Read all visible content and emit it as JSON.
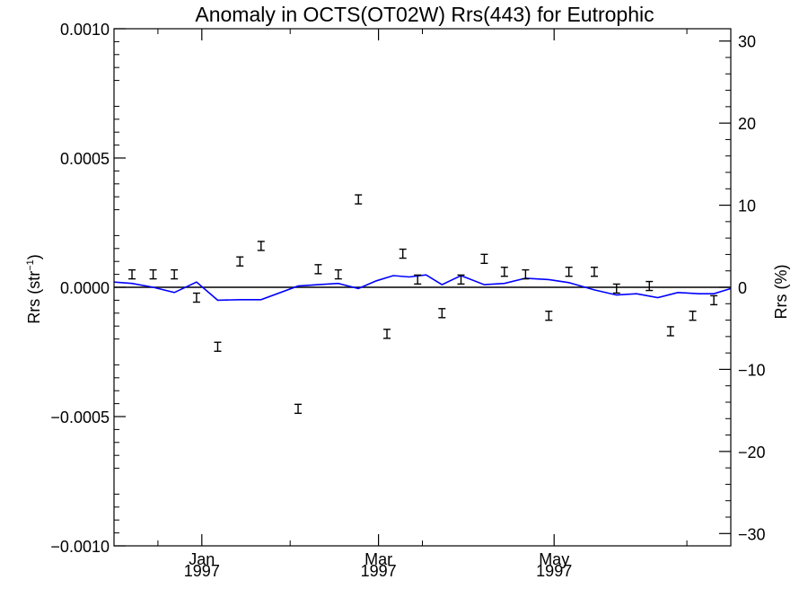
{
  "chart_data": {
    "type": "scatter",
    "title": "Anomaly in OCTS(OT02W) Rrs(443) for Eutrophic",
    "ylabel_left": {
      "main": "Rrs (str",
      "sup": "−1",
      "close": ")"
    },
    "ylabel_right": "Rrs (%)",
    "x_ticks": [
      {
        "month": "Jan",
        "year": "1997",
        "x": 1997.0
      },
      {
        "month": "Mar",
        "year": "1997",
        "x": 1997.167
      },
      {
        "month": "May",
        "year": "1997",
        "x": 1997.333
      }
    ],
    "xlim": [
      1996.917,
      1997.5
    ],
    "ylim_left": [
      -0.001,
      0.001
    ],
    "ylim_right": [
      -31.5,
      31.5
    ],
    "y_ticks_left": [
      "0.0010",
      "0.0005",
      "0.0000",
      "−0.0005",
      "−0.0010"
    ],
    "y_ticks_right": [
      "30",
      "20",
      "10",
      "0",
      "−10",
      "−20",
      "−30"
    ],
    "zero_line": true,
    "series": [
      {
        "kind": "errorbar",
        "color": "#000000",
        "x": [
          1996.934,
          1996.954,
          1996.974,
          1996.995,
          1997.015,
          1997.036,
          1997.056,
          1997.091,
          1997.11,
          1997.129,
          1997.175,
          1997.19,
          1997.204,
          1997.227,
          1997.245,
          1997.267,
          1997.286,
          1997.306,
          1997.328,
          1997.347,
          1997.371,
          1997.392,
          1997.423,
          1997.443,
          1997.464,
          1997.484
        ],
        "y": [
          5e-05,
          5e-05,
          5e-05,
          -4e-05,
          -0.00023,
          0.0001,
          0.00016,
          -0.00047,
          7e-05,
          5e-05,
          -0.00018,
          0.00013,
          3e-05,
          -0.0001,
          3e-05,
          0.00011,
          6e-05,
          5e-05,
          -0.00011,
          6e-05,
          6e-05,
          -5e-06,
          5e-06,
          -0.00017,
          -0.00011,
          -5e-05
        ],
        "y_extra": {
          "x": 1997.148,
          "y": 0.00034
        }
      },
      {
        "kind": "line",
        "color": "#0000ff",
        "x": [
          1996.917,
          1996.934,
          1996.954,
          1996.974,
          1996.995,
          1997.015,
          1997.036,
          1997.056,
          1997.091,
          1997.11,
          1997.129,
          1997.148,
          1997.165,
          1997.181,
          1997.196,
          1997.212,
          1997.227,
          1997.245,
          1997.267,
          1997.286,
          1997.306,
          1997.328,
          1997.347,
          1997.371,
          1997.392,
          1997.411,
          1997.431,
          1997.45,
          1997.47,
          1997.484,
          1997.5
        ],
        "y": [
          2e-05,
          1.5e-05,
          0.0,
          -2e-05,
          2e-05,
          -5e-05,
          -4.8e-05,
          -4.8e-05,
          5e-06,
          1e-05,
          1.5e-05,
          -5e-06,
          2.5e-05,
          4.5e-05,
          4e-05,
          4.8e-05,
          1e-05,
          4.5e-05,
          1e-05,
          1.5e-05,
          3.5e-05,
          3e-05,
          1.8e-05,
          -1e-05,
          -3e-05,
          -2.5e-05,
          -4e-05,
          -2e-05,
          -2.5e-05,
          -2.5e-05,
          -5e-06
        ]
      }
    ]
  }
}
